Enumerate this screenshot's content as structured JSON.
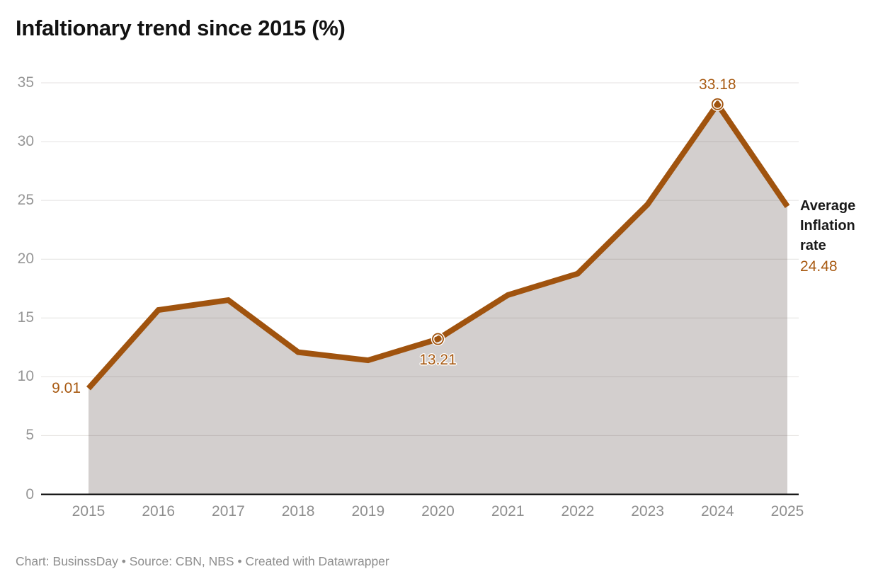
{
  "title": "Infaltionary trend since 2015 (%)",
  "footer": "Chart: BusinssDay • Source: CBN, NBS • Created with Datawrapper",
  "end_annotation": {
    "attached_to": "2025",
    "label_lines": [
      "Average",
      "Inflation",
      "rate"
    ],
    "value": "24.48"
  },
  "colors": {
    "line": "#A0530E",
    "point_label": "#A85A12",
    "area_fill": "rgba(84,70,64,0.26)",
    "grid": "#E4E2E0",
    "axis": "#000000",
    "ytick": "#969696",
    "xtick": "#8E8E8E",
    "title_text": "#121212",
    "annotation_text": "#1A1A1A",
    "footer_text": "#8E8E8E"
  },
  "chart_data": {
    "type": "area",
    "title": "Infaltionary trend since 2015 (%)",
    "xlabel": "",
    "ylabel": "",
    "categories": [
      "2015",
      "2016",
      "2017",
      "2018",
      "2019",
      "2020",
      "2021",
      "2022",
      "2023",
      "2024",
      "2025"
    ],
    "series": [
      {
        "name": "Inflation rate (%)",
        "values": [
          9.01,
          15.68,
          16.52,
          12.09,
          11.4,
          13.21,
          16.95,
          18.77,
          24.66,
          33.18,
          24.48
        ]
      }
    ],
    "yticks": [
      0,
      5,
      10,
      15,
      20,
      25,
      30,
      35
    ],
    "ylim": [
      0,
      35
    ],
    "grid": true,
    "legend_position": "none",
    "point_labels": [
      {
        "category": "2015",
        "text": "9.01",
        "position": "left",
        "marker": false
      },
      {
        "category": "2020",
        "text": "13.21",
        "position": "below",
        "marker": true
      },
      {
        "category": "2024",
        "text": "33.18",
        "position": "above",
        "marker": true
      }
    ]
  }
}
